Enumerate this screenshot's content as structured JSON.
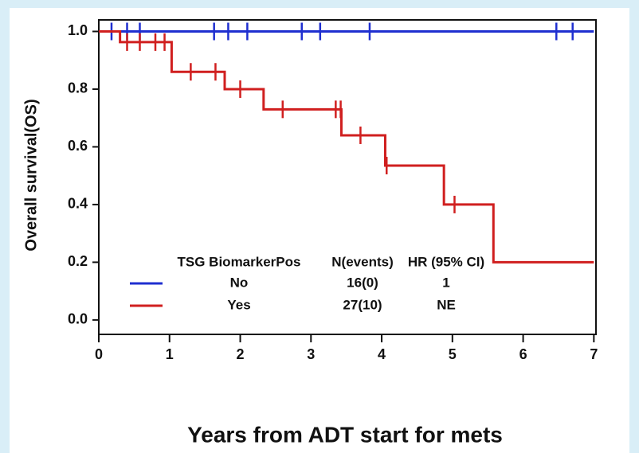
{
  "chart_data": {
    "type": "step",
    "xlabel": "Years from ADT start for mets",
    "ylabel": "Overall survival(OS)",
    "xlim": [
      0,
      7.03
    ],
    "ylim": [
      -0.05,
      1.04
    ],
    "xticks": [
      0,
      1,
      2,
      3,
      4,
      5,
      6,
      7
    ],
    "yticks": [
      {
        "value": 0,
        "label": "0.0"
      },
      {
        "value": 0.2,
        "label": "0.2"
      },
      {
        "value": 0.4,
        "label": "0.4"
      },
      {
        "value": 0.6,
        "label": "0.6"
      },
      {
        "value": 0.8,
        "label": "0.8"
      },
      {
        "value": 1,
        "label": "1.0"
      }
    ],
    "series": [
      {
        "name": "No",
        "color": "#1f2fd0",
        "x": [
          0,
          7
        ],
        "values": [
          1,
          1
        ],
        "censor_x": [
          0.18,
          0.4,
          0.58,
          1.63,
          1.83,
          2.1,
          2.87,
          3.13,
          3.83,
          6.47,
          6.7
        ],
        "censor_y": [
          1,
          1,
          1,
          1,
          1,
          1,
          1,
          1,
          1,
          1,
          1
        ]
      },
      {
        "name": "Yes",
        "color": "#d01f1f",
        "x": [
          0,
          0.3,
          1.03,
          1.78,
          2.33,
          3.43,
          4.05,
          4.88,
          5.58,
          7
        ],
        "values": [
          1,
          0.963,
          0.86,
          0.8,
          0.73,
          0.64,
          0.535,
          0.4,
          0.2,
          0.2
        ],
        "censor_x": [
          0.4,
          0.58,
          0.8,
          0.93,
          1.3,
          1.65,
          2.0,
          2.6,
          3.35,
          3.42,
          3.7,
          4.07,
          5.03
        ],
        "censor_y": [
          0.963,
          0.963,
          0.963,
          0.963,
          0.86,
          0.86,
          0.8,
          0.73,
          0.73,
          0.73,
          0.64,
          0.535,
          0.4
        ]
      }
    ],
    "legend": {
      "headers": [
        "TSG BiomarkerPos",
        "N(events)",
        "HR (95% CI)"
      ],
      "rows": [
        [
          "No",
          "16(0)",
          "1"
        ],
        [
          "Yes",
          "27(10)",
          "NE"
        ]
      ]
    }
  }
}
